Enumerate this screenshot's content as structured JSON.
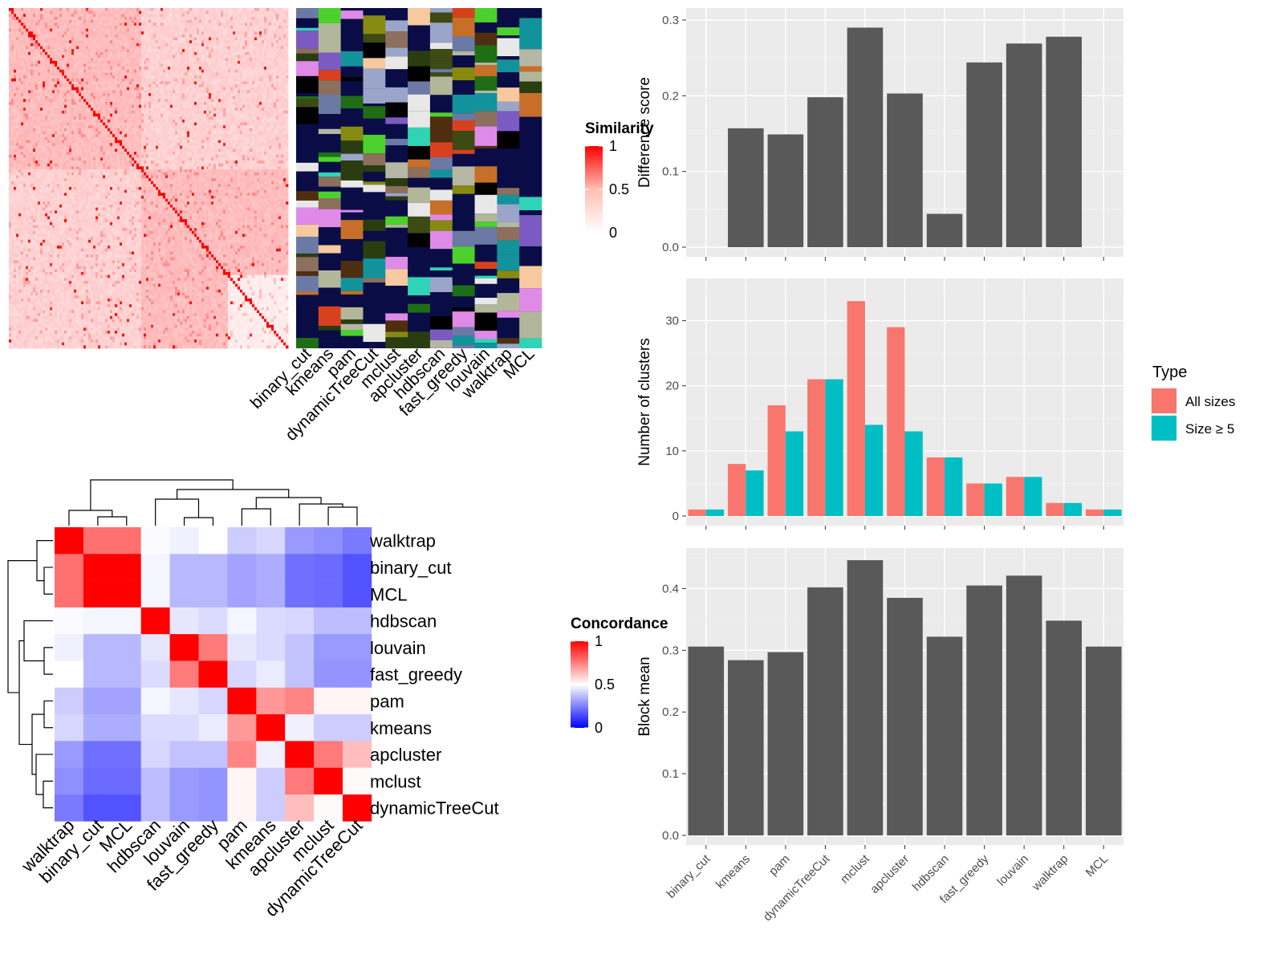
{
  "chart_data": [
    {
      "type": "heatmap",
      "legend": {
        "title": "Similarity",
        "ticks": [
          "1",
          "0.5",
          "0"
        ]
      },
      "color_low": "#ffffff",
      "color_high": "#ff0000",
      "methods": [
        "binary_cut",
        "kmeans",
        "pam",
        "dynamicTreeCut",
        "mclust",
        "apcluster",
        "hdbscan",
        "fast_greedy",
        "louvain",
        "walktrap",
        "MCL"
      ],
      "annotation_bg": "#0a0d45"
    },
    {
      "type": "heatmap",
      "legend": {
        "title": "Concordance",
        "ticks": [
          "1",
          "0.5",
          "0"
        ]
      },
      "color_low": "#0000ff",
      "color_mid": "#ffffff",
      "color_high": "#ff0000",
      "rows": [
        "walktrap",
        "binary_cut",
        "MCL",
        "hdbscan",
        "louvain",
        "fast_greedy",
        "pam",
        "kmeans",
        "apcluster",
        "mclust",
        "dynamicTreeCut"
      ],
      "cols": [
        "walktrap",
        "binary_cut",
        "MCL",
        "hdbscan",
        "louvain",
        "fast_greedy",
        "pam",
        "kmeans",
        "apcluster",
        "mclust",
        "dynamicTreeCut"
      ],
      "values": [
        [
          1.0,
          0.78,
          0.78,
          0.49,
          0.47,
          0.5,
          0.4,
          0.42,
          0.3,
          0.28,
          0.24
        ],
        [
          0.78,
          1.0,
          1.0,
          0.48,
          0.36,
          0.36,
          0.32,
          0.34,
          0.22,
          0.21,
          0.16
        ],
        [
          0.78,
          1.0,
          1.0,
          0.48,
          0.36,
          0.36,
          0.32,
          0.34,
          0.22,
          0.21,
          0.16
        ],
        [
          0.49,
          0.48,
          0.48,
          1.0,
          0.45,
          0.43,
          0.48,
          0.43,
          0.42,
          0.37,
          0.37
        ],
        [
          0.47,
          0.36,
          0.36,
          0.45,
          1.0,
          0.76,
          0.45,
          0.43,
          0.38,
          0.3,
          0.3
        ],
        [
          0.5,
          0.36,
          0.36,
          0.43,
          0.76,
          1.0,
          0.42,
          0.46,
          0.38,
          0.29,
          0.29
        ],
        [
          0.4,
          0.32,
          0.32,
          0.48,
          0.45,
          0.42,
          1.0,
          0.7,
          0.74,
          0.52,
          0.52
        ],
        [
          0.42,
          0.34,
          0.34,
          0.43,
          0.43,
          0.46,
          0.7,
          1.0,
          0.47,
          0.4,
          0.4
        ],
        [
          0.3,
          0.22,
          0.22,
          0.42,
          0.38,
          0.38,
          0.74,
          0.47,
          1.0,
          0.76,
          0.63
        ],
        [
          0.28,
          0.21,
          0.21,
          0.37,
          0.3,
          0.29,
          0.52,
          0.4,
          0.76,
          1.0,
          0.51
        ],
        [
          0.24,
          0.16,
          0.16,
          0.37,
          0.3,
          0.29,
          0.52,
          0.4,
          0.63,
          0.51,
          1.0
        ]
      ]
    },
    {
      "type": "bar",
      "ylabel": "Difference score",
      "categories": [
        "binary_cut",
        "kmeans",
        "pam",
        "dynamicTreeCut",
        "mclust",
        "apcluster",
        "hdbscan",
        "fast_greedy",
        "louvain",
        "walktrap",
        "MCL"
      ],
      "values": [
        0,
        0.157,
        0.149,
        0.198,
        0.29,
        0.203,
        0.044,
        0.244,
        0.269,
        0.278,
        0
      ],
      "ylim": [
        0,
        0.3
      ],
      "yticks": [
        "0.0",
        "0.1",
        "0.2",
        "0.3"
      ],
      "bar_color": "#595959"
    },
    {
      "type": "bar",
      "ylabel": "Number of clusters",
      "categories": [
        "binary_cut",
        "kmeans",
        "pam",
        "dynamicTreeCut",
        "mclust",
        "apcluster",
        "hdbscan",
        "fast_greedy",
        "louvain",
        "walktrap",
        "MCL"
      ],
      "series": [
        {
          "name": "All sizes",
          "color": "#f8766d",
          "values": [
            1,
            8,
            17,
            21,
            33,
            29,
            9,
            5,
            6,
            2,
            1
          ]
        },
        {
          "name": "Size ≥ 5",
          "color": "#00bfc4",
          "values": [
            1,
            7,
            13,
            21,
            14,
            13,
            9,
            5,
            6,
            2,
            1
          ]
        }
      ],
      "ylim": [
        0,
        35
      ],
      "yticks": [
        "0",
        "10",
        "20",
        "30"
      ],
      "legend": {
        "title": "Type",
        "placement": "right"
      }
    },
    {
      "type": "bar",
      "ylabel": "Block mean",
      "categories": [
        "binary_cut",
        "kmeans",
        "pam",
        "dynamicTreeCut",
        "mclust",
        "apcluster",
        "hdbscan",
        "fast_greedy",
        "louvain",
        "walktrap",
        "MCL"
      ],
      "values": [
        0.306,
        0.284,
        0.297,
        0.402,
        0.446,
        0.385,
        0.322,
        0.405,
        0.421,
        0.348,
        0.306
      ],
      "ylim": [
        0,
        0.45
      ],
      "yticks": [
        "0.0",
        "0.1",
        "0.2",
        "0.3",
        "0.4"
      ],
      "bar_color": "#595959"
    }
  ]
}
